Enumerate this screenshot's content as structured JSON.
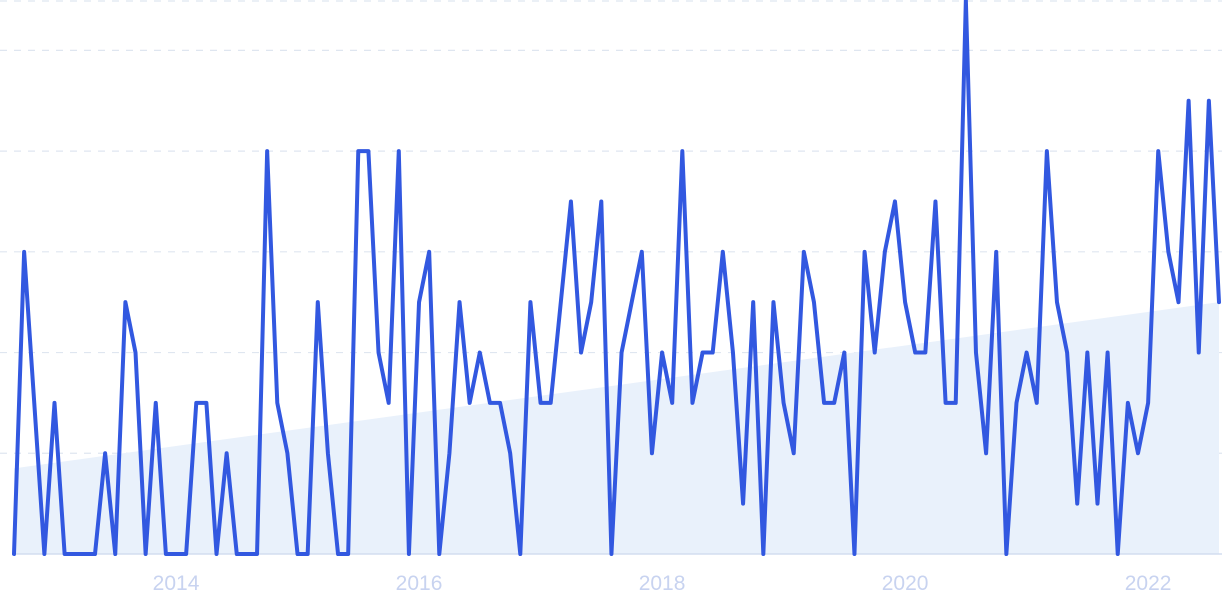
{
  "chart_data": {
    "type": "line",
    "title": "",
    "xlabel": "",
    "ylabel": "",
    "x_start": "2012-09",
    "x_tick_labels": [
      {
        "label": "2014",
        "year": 2014
      },
      {
        "label": "2016",
        "year": 2016
      },
      {
        "label": "2018",
        "year": 2018
      },
      {
        "label": "2020",
        "year": 2020
      },
      {
        "label": "2022",
        "year": 2022
      }
    ],
    "ylim": [
      0,
      110
    ],
    "grid": "horizontal-dashed",
    "series": [
      {
        "values": [
          0,
          60,
          30,
          0,
          30,
          0,
          0,
          0,
          0,
          20,
          0,
          50,
          40,
          0,
          30,
          0,
          0,
          0,
          30,
          30,
          0,
          20,
          0,
          0,
          0,
          80,
          30,
          20,
          0,
          0,
          50,
          20,
          0,
          0,
          80,
          80,
          40,
          30,
          80,
          0,
          50,
          60,
          0,
          20,
          50,
          30,
          40,
          30,
          30,
          20,
          0,
          50,
          30,
          30,
          50,
          70,
          40,
          50,
          70,
          0,
          40,
          50,
          60,
          20,
          40,
          30,
          80,
          30,
          40,
          40,
          60,
          40,
          10,
          50,
          0,
          50,
          30,
          20,
          60,
          50,
          30,
          30,
          40,
          0,
          60,
          40,
          60,
          70,
          50,
          40,
          40,
          70,
          30,
          30,
          110,
          40,
          20,
          60,
          0,
          30,
          40,
          30,
          80,
          50,
          40,
          10,
          40,
          10,
          40,
          0,
          30,
          20,
          30,
          80,
          60,
          50,
          90,
          40,
          90,
          50
        ]
      },
      {
        "type": "area",
        "values": [
          17,
          50
        ]
      }
    ],
    "colors": {
      "line": "#3258e0",
      "trend_fill": "#e9f1fb"
    }
  }
}
